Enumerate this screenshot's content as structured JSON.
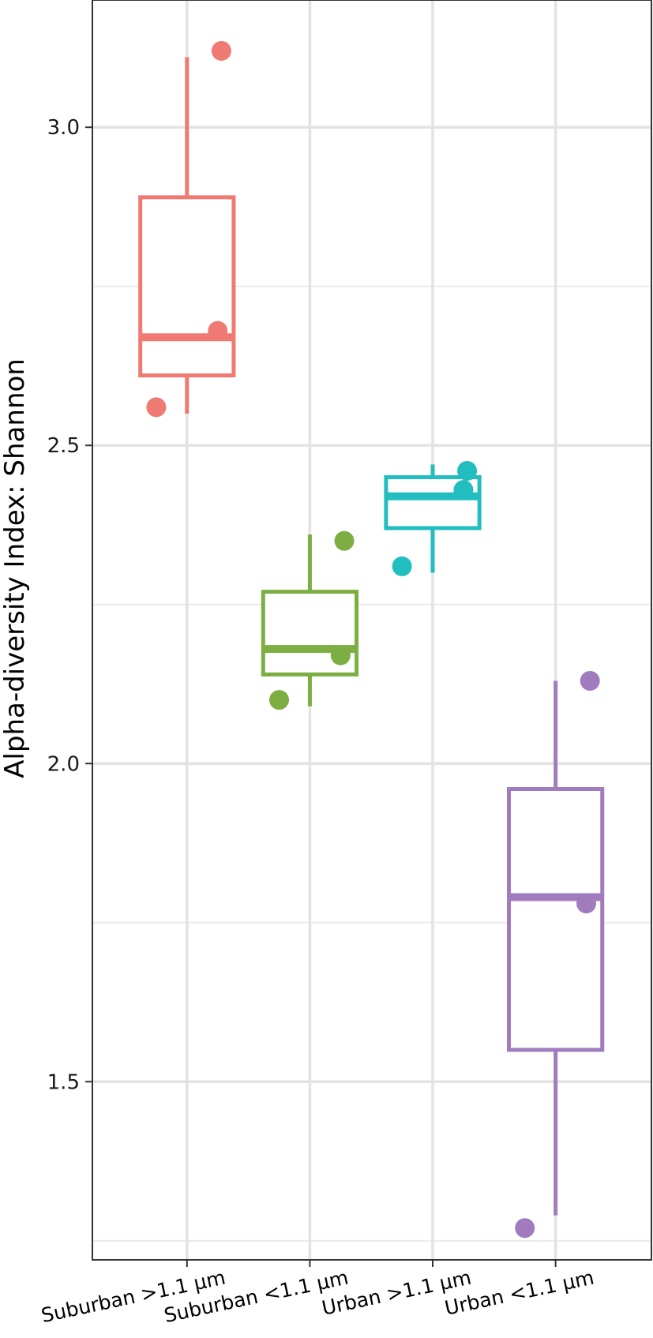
{
  "chart_data": {
    "type": "box",
    "title": "",
    "xlabel": "",
    "ylabel": "Alpha-diversity Index:  Shannon",
    "ylim": [
      1.22,
      3.2
    ],
    "yticks": [
      1.5,
      2.0,
      2.5,
      3.0
    ],
    "ytick_labels": [
      "1.5",
      "2.0",
      "2.5",
      "3.0"
    ],
    "grid": true,
    "legend": "none",
    "categories": [
      "Suburban >1.1 µm",
      "Suburban <1.1 µm",
      "Urban >1.1 µm",
      "Urban <1.1 µm"
    ],
    "series": [
      {
        "category": "Suburban >1.1 µm",
        "color": "#EF7A73",
        "whisker_low": 2.55,
        "q1": 2.61,
        "median": 2.67,
        "q3": 2.89,
        "whisker_high": 3.11,
        "points": [
          3.12,
          2.68,
          2.56
        ]
      },
      {
        "category": "Suburban <1.1 µm",
        "color": "#7CAE42",
        "whisker_low": 2.09,
        "q1": 2.14,
        "median": 2.18,
        "q3": 2.27,
        "whisker_high": 2.36,
        "points": [
          2.35,
          2.17,
          2.1
        ]
      },
      {
        "category": "Urban >1.1 µm",
        "color": "#22BDBF",
        "whisker_low": 2.3,
        "q1": 2.37,
        "median": 2.42,
        "q3": 2.45,
        "whisker_high": 2.47,
        "points": [
          2.46,
          2.43,
          2.31
        ]
      },
      {
        "category": "Urban <1.1 µm",
        "color": "#A07CBE",
        "whisker_low": 1.29,
        "q1": 1.55,
        "median": 1.79,
        "q3": 1.96,
        "whisker_high": 2.13,
        "points": [
          2.13,
          1.78,
          1.27
        ]
      }
    ]
  }
}
